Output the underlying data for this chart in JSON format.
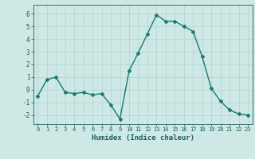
{
  "x": [
    0,
    1,
    2,
    3,
    4,
    5,
    6,
    7,
    8,
    9,
    10,
    11,
    12,
    13,
    14,
    15,
    16,
    17,
    18,
    19,
    20,
    21,
    22,
    23
  ],
  "y": [
    -0.5,
    0.8,
    1.0,
    -0.2,
    -0.3,
    -0.2,
    -0.4,
    -0.3,
    -1.2,
    -2.3,
    1.5,
    2.9,
    4.4,
    5.9,
    5.4,
    5.4,
    5.0,
    4.6,
    2.6,
    0.1,
    -0.9,
    -1.6,
    -1.9,
    -2.0
  ],
  "xlabel": "Humidex (Indice chaleur)",
  "xlim": [
    -0.5,
    23.5
  ],
  "ylim": [
    -2.7,
    6.7
  ],
  "yticks": [
    -2,
    -1,
    0,
    1,
    2,
    3,
    4,
    5,
    6
  ],
  "xticks": [
    0,
    1,
    2,
    3,
    4,
    5,
    6,
    7,
    8,
    9,
    10,
    11,
    12,
    13,
    14,
    15,
    16,
    17,
    18,
    19,
    20,
    21,
    22,
    23
  ],
  "line_color": "#1a7a6e",
  "marker": "D",
  "marker_size": 2.0,
  "bg_color": "#cde8e5",
  "grid_color": "#b0d4d0",
  "tick_color": "#1a5f5a",
  "label_color": "#1a5f5a",
  "font_family": "monospace",
  "linewidth": 1.0
}
